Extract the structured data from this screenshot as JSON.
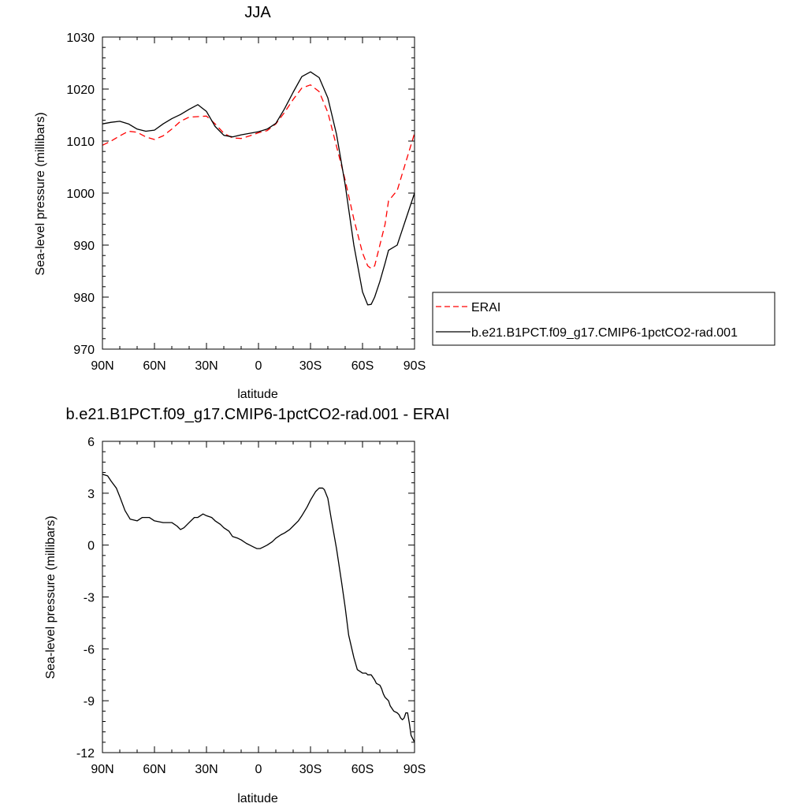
{
  "chart_data": [
    {
      "type": "line",
      "title": "JJA",
      "xlabel": "latitude",
      "ylabel": "Sea-level pressure (millibars)",
      "xlim": [
        90,
        -90
      ],
      "ylim": [
        970,
        1030
      ],
      "xticks": [
        90,
        60,
        30,
        0,
        -30,
        -60,
        -90
      ],
      "xtick_labels": [
        "90N",
        "60N",
        "30N",
        "0",
        "30S",
        "60S",
        "90S"
      ],
      "yticks": [
        970,
        980,
        990,
        1000,
        1010,
        1020,
        1030
      ],
      "ytick_labels": [
        "970",
        "980",
        "990",
        "1000",
        "1010",
        "1020",
        "1030"
      ],
      "legend_position": "right",
      "grid": false,
      "series": [
        {
          "name": "ERAI",
          "color": "#ff0000",
          "dash": "dashed",
          "x": [
            90,
            85,
            80,
            75,
            70,
            65,
            60,
            55,
            50,
            45,
            40,
            35,
            30,
            25,
            20,
            15,
            10,
            5,
            0,
            -5,
            -10,
            -15,
            -20,
            -25,
            -30,
            -35,
            -40,
            -45,
            -50,
            -55,
            -60,
            -63,
            -65,
            -67,
            -70,
            -73,
            -75,
            -80,
            -85,
            -90
          ],
          "y": [
            1009.2,
            1010.0,
            1011.0,
            1011.9,
            1011.7,
            1010.8,
            1010.3,
            1011.0,
            1012.3,
            1013.8,
            1014.6,
            1014.7,
            1014.8,
            1013.3,
            1011.5,
            1010.6,
            1010.5,
            1011.0,
            1011.6,
            1012.0,
            1013.3,
            1015.5,
            1018.0,
            1020.2,
            1020.8,
            1019.5,
            1015.5,
            1009.0,
            1002.5,
            995.0,
            988.5,
            986.0,
            985.5,
            986.0,
            990.0,
            994.0,
            998.5,
            1000.5,
            1006.0,
            1011.5
          ]
        },
        {
          "name": "b.e21.B1PCT.f09_g17.CMIP6-1pctCO2-rad.001",
          "color": "#000000",
          "dash": "solid",
          "x": [
            90,
            85,
            80,
            75,
            70,
            65,
            60,
            55,
            50,
            45,
            40,
            35,
            30,
            25,
            20,
            15,
            10,
            5,
            0,
            -5,
            -10,
            -15,
            -20,
            -25,
            -30,
            -35,
            -40,
            -45,
            -50,
            -55,
            -60,
            -63,
            -65,
            -67,
            -70,
            -73,
            -75,
            -80,
            -85,
            -90
          ],
          "y": [
            1013.3,
            1013.6,
            1013.8,
            1013.3,
            1012.3,
            1011.9,
            1012.1,
            1013.3,
            1014.3,
            1015.1,
            1016.1,
            1017.0,
            1015.7,
            1012.8,
            1011.1,
            1010.8,
            1011.2,
            1011.5,
            1011.8,
            1012.3,
            1013.4,
            1016.2,
            1019.4,
            1022.4,
            1023.3,
            1022.2,
            1018.3,
            1011.3,
            1001.6,
            990.0,
            981.0,
            978.5,
            978.6,
            980.0,
            983.0,
            986.5,
            989.0,
            990.0,
            995.0,
            1000.0
          ]
        }
      ]
    },
    {
      "type": "line",
      "title": "b.e21.B1PCT.f09_g17.CMIP6-1pctCO2-rad.001 - ERAI",
      "xlabel": "latitude",
      "ylabel": "Sea-level pressure (millibars)",
      "xlim": [
        90,
        -90
      ],
      "ylim": [
        -12,
        6
      ],
      "xticks": [
        90,
        60,
        30,
        0,
        -30,
        -60,
        -90
      ],
      "xtick_labels": [
        "90N",
        "60N",
        "30N",
        "0",
        "30S",
        "60S",
        "90S"
      ],
      "yticks": [
        6,
        3,
        0,
        -3,
        -6,
        -9,
        -12
      ],
      "ytick_labels": [
        "6",
        "3",
        "0",
        "-3",
        "-6",
        "-9",
        "-12"
      ],
      "grid": false,
      "series": [
        {
          "color": "#000000",
          "dash": "solid",
          "x": [
            90,
            87,
            85,
            82,
            80,
            77,
            74,
            70,
            67,
            63,
            60,
            55,
            50,
            47,
            45,
            43,
            40,
            37,
            35,
            32,
            30,
            27,
            25,
            22,
            20,
            17,
            15,
            12,
            10,
            7,
            5,
            3,
            1,
            0,
            -1,
            -3,
            -5,
            -8,
            -10,
            -13,
            -15,
            -18,
            -20,
            -23,
            -25,
            -28,
            -30,
            -33,
            -35,
            -37,
            -38,
            -40,
            -42,
            -45,
            -48,
            -50,
            -52,
            -55,
            -57,
            -60,
            -62,
            -63,
            -65,
            -67,
            -68,
            -70,
            -71,
            -72,
            -73,
            -74,
            -75,
            -76,
            -78,
            -80,
            -81,
            -82,
            -83,
            -84,
            -85,
            -86,
            -87,
            -88,
            -89,
            -90
          ],
          "y": [
            4.1,
            4.0,
            3.7,
            3.3,
            2.8,
            2.0,
            1.5,
            1.4,
            1.6,
            1.6,
            1.4,
            1.3,
            1.3,
            1.1,
            0.9,
            1.0,
            1.3,
            1.6,
            1.6,
            1.8,
            1.7,
            1.6,
            1.4,
            1.2,
            1.0,
            0.8,
            0.5,
            0.4,
            0.3,
            0.1,
            0.0,
            -0.1,
            -0.2,
            -0.2,
            -0.2,
            -0.1,
            0.0,
            0.2,
            0.4,
            0.6,
            0.7,
            0.9,
            1.1,
            1.4,
            1.7,
            2.2,
            2.6,
            3.1,
            3.3,
            3.3,
            3.2,
            2.7,
            1.5,
            -0.2,
            -2.2,
            -3.6,
            -5.2,
            -6.5,
            -7.2,
            -7.4,
            -7.4,
            -7.5,
            -7.5,
            -7.8,
            -8.0,
            -8.1,
            -8.3,
            -8.6,
            -8.8,
            -8.9,
            -9.0,
            -9.3,
            -9.6,
            -9.7,
            -9.8,
            -10.0,
            -10.1,
            -10.0,
            -9.7,
            -9.7,
            -10.3,
            -11.0,
            -11.2,
            -11.4
          ]
        }
      ]
    }
  ]
}
